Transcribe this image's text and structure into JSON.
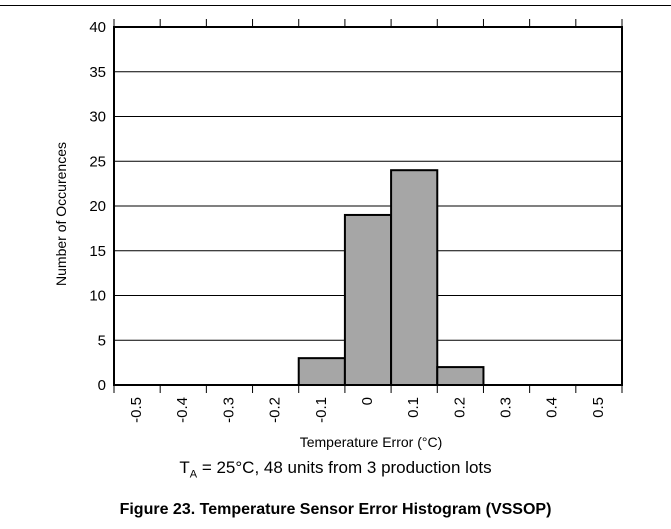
{
  "chart_data": {
    "type": "bar",
    "categories": [
      "-0.5",
      "-0.4",
      "-0.3",
      "-0.2",
      "-0.1",
      "0",
      "0.1",
      "0.2",
      "0.3",
      "0.4",
      "0.5"
    ],
    "values": [
      0,
      0,
      0,
      0,
      3,
      19,
      24,
      2,
      0,
      0,
      0
    ],
    "ylim": [
      0,
      40
    ],
    "yticks": [
      "0",
      "5",
      "10",
      "15",
      "20",
      "25",
      "30",
      "35",
      "40"
    ],
    "xlabel": "Temperature Error (°C)",
    "ylabel": "Number of Occurences",
    "grid": true,
    "bar_color": "#a6a6a6"
  },
  "subtitle": {
    "t": "T",
    "sub": "A",
    "rest": " = 25°C, 48 units from 3 production lots"
  },
  "caption": "Figure 23. Temperature Sensor Error Histogram (VSSOP)"
}
